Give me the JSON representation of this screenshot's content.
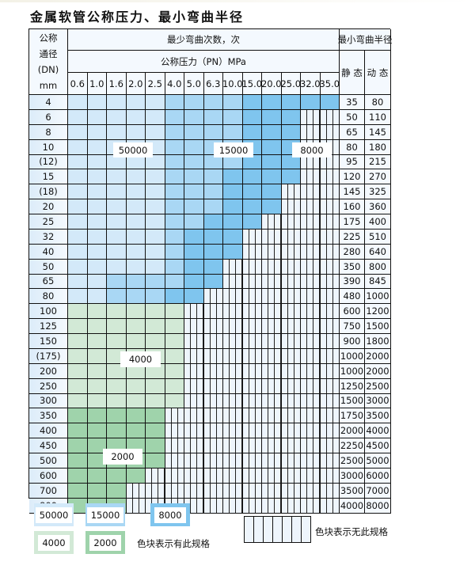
{
  "title": "金属软管公称压力、最小弯曲半径",
  "header": {
    "dn_lines": [
      "公称",
      "通径",
      "(DN)",
      "mm"
    ],
    "cycles_label": "最少弯曲次数，次",
    "pressure_label": "公称压力（PN）MPa",
    "radius_label": "最小弯曲半径",
    "static_label": "静 态",
    "dynamic_label": "动 态",
    "pressures": [
      "0.6",
      "1.0",
      "1.6",
      "2.0",
      "2.5",
      "4.0",
      "5.0",
      "6.3",
      "10.0",
      "15.0",
      "20.0",
      "25.0",
      "32.0",
      "35.0"
    ]
  },
  "categories": {
    "a": {
      "cycles": "50000",
      "color": "#d3e9f9"
    },
    "b": {
      "cycles": "15000",
      "color": "#a9d7f4"
    },
    "c": {
      "cycles": "8000",
      "color": "#7fc5ee"
    },
    "d": {
      "cycles": "4000",
      "color": "#d2e9d6"
    },
    "e": {
      "cycles": "2000",
      "color": "#9fd3ab"
    }
  },
  "rows": [
    {
      "dn": "4",
      "static": "35",
      "dynamic": "80",
      "cells": "aaaaabbbbccccc"
    },
    {
      "dn": "6",
      "static": "50",
      "dynamic": "110",
      "cells": "aaaaabbbbccc"
    },
    {
      "dn": "8",
      "static": "65",
      "dynamic": "145",
      "cells": "aaaaabbbbccc"
    },
    {
      "dn": "10",
      "static": "80",
      "dynamic": "180",
      "cells": "aaaaabbbbccc"
    },
    {
      "dn": "(12)",
      "static": "95",
      "dynamic": "215",
      "cells": "aaaaabbbbccc"
    },
    {
      "dn": "15",
      "static": "120",
      "dynamic": "270",
      "cells": "aaaaabbbcccc"
    },
    {
      "dn": "(18)",
      "static": "145",
      "dynamic": "325",
      "cells": "aaaaabbbccc"
    },
    {
      "dn": "20",
      "static": "160",
      "dynamic": "360",
      "cells": "aaaaabbbccc"
    },
    {
      "dn": "25",
      "static": "175",
      "dynamic": "400",
      "cells": "aaaaabbccc"
    },
    {
      "dn": "32",
      "static": "225",
      "dynamic": "510",
      "cells": "aaaaabccc"
    },
    {
      "dn": "40",
      "static": "280",
      "dynamic": "640",
      "cells": "aaaaabccc"
    },
    {
      "dn": "50",
      "static": "350",
      "dynamic": "800",
      "cells": "aaaaabcc"
    },
    {
      "dn": "65",
      "static": "390",
      "dynamic": "845",
      "cells": "aabbbbcc"
    },
    {
      "dn": "80",
      "static": "480",
      "dynamic": "1000",
      "cells": "aabbbcc"
    },
    {
      "dn": "100",
      "static": "600",
      "dynamic": "1200",
      "cells": "dddddd"
    },
    {
      "dn": "125",
      "static": "750",
      "dynamic": "1500",
      "cells": "dddddd"
    },
    {
      "dn": "150",
      "static": "900",
      "dynamic": "1800",
      "cells": "dddddd"
    },
    {
      "dn": "(175)",
      "static": "1000",
      "dynamic": "2000",
      "cells": "dddddd"
    },
    {
      "dn": "200",
      "static": "1000",
      "dynamic": "2000",
      "cells": "dddddd"
    },
    {
      "dn": "250",
      "static": "1250",
      "dynamic": "2500",
      "cells": "dddddd"
    },
    {
      "dn": "300",
      "static": "1500",
      "dynamic": "3000",
      "cells": "dddddd"
    },
    {
      "dn": "350",
      "static": "1750",
      "dynamic": "3500",
      "cells": "eeeee"
    },
    {
      "dn": "400",
      "static": "2000",
      "dynamic": "4000",
      "cells": "eeeee"
    },
    {
      "dn": "450",
      "static": "2250",
      "dynamic": "4500",
      "cells": "eeeee"
    },
    {
      "dn": "500",
      "static": "2500",
      "dynamic": "5000",
      "cells": "eeeee"
    },
    {
      "dn": "600",
      "static": "3000",
      "dynamic": "6000",
      "cells": "eeee"
    },
    {
      "dn": "700",
      "static": "3500",
      "dynamic": "7000",
      "cells": "eee"
    },
    {
      "dn": "800",
      "static": "4000",
      "dynamic": "8000",
      "cells": "eee"
    }
  ],
  "region_labels": [
    "50000",
    "15000",
    "8000",
    "4000",
    "2000"
  ],
  "legend": {
    "items": [
      "50000",
      "15000",
      "8000",
      "4000",
      "2000"
    ],
    "available_text": "色块表示有此规格",
    "unavailable_text": "色块表示无此规格"
  }
}
